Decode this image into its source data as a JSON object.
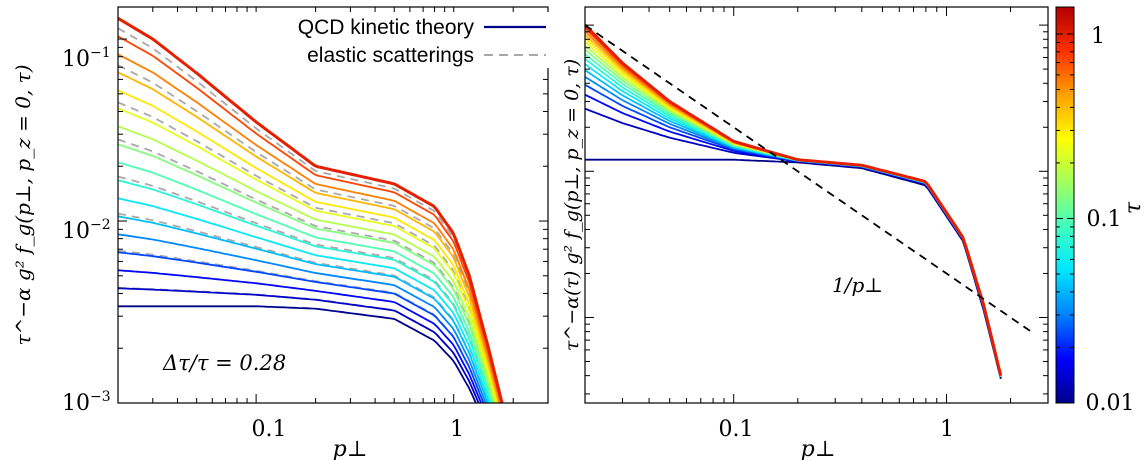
{
  "chart_data": [
    {
      "type": "line",
      "panel": "left",
      "x_scale": "log",
      "y_scale": "log",
      "xlim": [
        0.02,
        3.0
      ],
      "ylim": [
        0.001,
        0.15
      ],
      "xlabel": "p⊥",
      "ylabel": "τ^−α g² f_g(p⊥, p_z = 0, τ)",
      "x_ticks": [
        {
          "value": 0.1,
          "label": "0.1"
        },
        {
          "value": 1,
          "label": "1"
        }
      ],
      "y_ticks": [
        {
          "value": 0.001,
          "label": "10",
          "exp": "−3"
        },
        {
          "value": 0.01,
          "label": "10",
          "exp": "−2"
        },
        {
          "value": 0.1,
          "label": "10",
          "exp": "−1"
        }
      ],
      "annotation": "Δτ/τ = 0.28",
      "legend": {
        "placement": "top-right",
        "entries": [
          {
            "label": "QCD kinetic theory",
            "style": "solid",
            "color": "#00008b"
          },
          {
            "label": "elastic scatterings",
            "style": "dashed",
            "color": "#a9a9a9"
          }
        ]
      },
      "curve_family": {
        "description_source": "17 solid curves colored by τ from 0.01 (dark blue) to ~1.4 (dark red); dashed gray curves follow the same family",
        "tau_values": [
          0.01,
          0.0133,
          0.0177,
          0.0236,
          0.0314,
          0.0418,
          0.0556,
          0.074,
          0.0985,
          0.131,
          0.175,
          0.232,
          0.309,
          0.411,
          0.548,
          0.729,
          0.97
        ],
        "sample_x": [
          0.02,
          0.03,
          0.05,
          0.1,
          0.2,
          0.5,
          0.8,
          1.0,
          1.2,
          1.5,
          1.8
        ],
        "first_curve_y": [
          0.0034,
          0.0034,
          0.0034,
          0.0034,
          0.0033,
          0.0029,
          0.0022,
          0.0017,
          0.0012,
          0.0007,
          0.0004
        ],
        "last_curve_y": [
          0.13,
          0.1,
          0.065,
          0.035,
          0.02,
          0.016,
          0.012,
          0.0085,
          0.005,
          0.002,
          0.0009
        ]
      }
    },
    {
      "type": "line",
      "panel": "right",
      "x_scale": "log",
      "y_scale": "log",
      "xlim": [
        0.02,
        3.0
      ],
      "xlabel": "p⊥",
      "ylabel": "τ^−α(τ) g² f_g(p⊥, p_z = 0, τ)",
      "x_ticks": [
        {
          "value": 0.1,
          "label": "0.1"
        },
        {
          "value": 1,
          "label": "1"
        }
      ],
      "annotation": "1/p⊥",
      "reference_line": {
        "label": "1/p⊥",
        "style": "dashed",
        "color": "#000000",
        "slope": -1
      },
      "curve_family": {
        "tau_values": [
          0.01,
          0.0133,
          0.0177,
          0.0236,
          0.0314,
          0.0418,
          0.0556,
          0.074,
          0.0985,
          0.131,
          0.175,
          0.232,
          0.309,
          0.411,
          0.548,
          0.729,
          0.97
        ],
        "sample_x": [
          0.02,
          0.03,
          0.05,
          0.1,
          0.2,
          0.4,
          0.8,
          1.2,
          1.5,
          1.8
        ],
        "collapsed_curve_y": [
          1.0,
          0.55,
          0.3,
          0.16,
          0.12,
          0.11,
          0.085,
          0.035,
          0.012,
          0.004
        ],
        "first_curve_y": [
          0.12,
          0.12,
          0.12,
          0.12,
          0.115,
          0.105,
          0.08,
          0.033,
          0.011,
          0.0038
        ]
      }
    }
  ],
  "colorbar": {
    "label": "τ",
    "scale": "log",
    "range": [
      0.01,
      1.4
    ],
    "ticks": [
      {
        "value": 0.01,
        "label": "0.01"
      },
      {
        "value": 0.1,
        "label": "0.1"
      },
      {
        "value": 1,
        "label": "1"
      }
    ],
    "colors": [
      "#00008b",
      "#0000ff",
      "#0080ff",
      "#00e5ff",
      "#40ffbf",
      "#a0ff60",
      "#ffff00",
      "#ffa000",
      "#ff3000",
      "#b00000"
    ]
  }
}
